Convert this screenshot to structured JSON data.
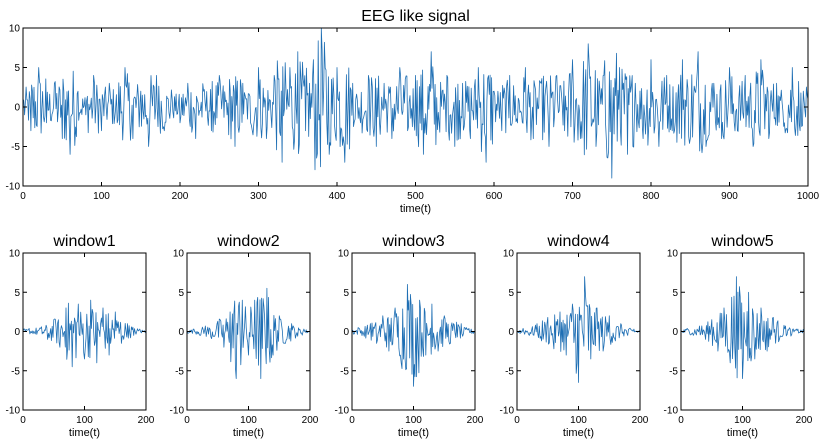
{
  "chart_data": [
    {
      "type": "line",
      "title": "EEG like signal",
      "xlabel": "time(t)",
      "ylabel": "",
      "xlim": [
        0,
        1000
      ],
      "ylim": [
        -10,
        10
      ],
      "xticks": [
        0,
        100,
        200,
        300,
        400,
        500,
        600,
        700,
        800,
        900,
        1000
      ],
      "yticks": [
        -10,
        -5,
        0,
        5,
        10
      ],
      "grid": false,
      "color": "#1f6fb4",
      "series": [
        {
          "x": [
            0,
            10,
            20,
            30,
            40,
            50,
            60,
            70,
            80,
            90,
            100,
            110,
            120,
            130,
            140,
            150,
            160,
            170,
            180,
            190,
            200,
            210,
            220,
            230,
            240,
            250,
            260,
            270,
            280,
            290,
            300,
            310,
            320,
            330,
            340,
            350,
            360,
            370,
            380,
            390,
            400,
            410,
            420,
            430,
            440,
            450,
            460,
            470,
            480,
            490,
            500,
            510,
            520,
            530,
            540,
            550,
            560,
            570,
            580,
            590,
            600,
            610,
            620,
            630,
            640,
            650,
            660,
            670,
            680,
            690,
            700,
            710,
            720,
            730,
            740,
            750,
            760,
            770,
            780,
            790,
            800,
            810,
            820,
            830,
            840,
            850,
            860,
            870,
            880,
            890,
            900,
            910,
            920,
            930,
            940,
            950,
            960,
            970,
            980,
            990,
            1000
          ],
          "y": [
            1,
            -3,
            5,
            -2,
            3,
            -4,
            -6,
            2,
            -1,
            4,
            -3,
            3,
            -2,
            5,
            -4,
            2,
            -5,
            4,
            -3,
            1,
            -2,
            3,
            -4,
            2,
            -3,
            4,
            -1,
            -5,
            3,
            -2,
            5,
            -4,
            4,
            -7,
            5,
            7,
            -3,
            6,
            10,
            -6,
            5,
            -7,
            3,
            -2,
            4,
            -5,
            3,
            -4,
            5,
            -3,
            4,
            -6,
            7,
            -2,
            4,
            -5,
            3,
            -4,
            5,
            -7,
            2,
            -3,
            4,
            -2,
            5,
            -4,
            3,
            -5,
            4,
            -3,
            6,
            -4,
            8,
            -5,
            4,
            -9,
            5,
            -6,
            3,
            -4,
            6,
            -5,
            4,
            -3,
            6,
            -4,
            7,
            -5,
            3,
            -4,
            5,
            -3,
            4,
            -5,
            6,
            -4,
            3,
            -2,
            5,
            -3,
            1
          ]
        }
      ]
    },
    {
      "type": "line",
      "title": "window1",
      "xlabel": "time(t)",
      "xlim": [
        0,
        200
      ],
      "ylim": [
        -10,
        10
      ],
      "xticks": [
        0,
        100,
        200
      ],
      "yticks": [
        -10,
        -5,
        0,
        5,
        10
      ],
      "series": [
        {
          "x": [
            0,
            10,
            20,
            30,
            40,
            50,
            60,
            70,
            80,
            90,
            100,
            110,
            120,
            130,
            140,
            150,
            160,
            170,
            180,
            190,
            200
          ],
          "y": [
            0,
            0.4,
            -0.3,
            0.6,
            -1,
            1.5,
            -2,
            3,
            -4.5,
            3.5,
            -3.5,
            4,
            -4,
            3,
            -3,
            2.5,
            -1.5,
            1,
            -0.5,
            0.3,
            0
          ]
        }
      ]
    },
    {
      "type": "line",
      "title": "window2",
      "xlabel": "time(t)",
      "xlim": [
        0,
        200
      ],
      "ylim": [
        -10,
        10
      ],
      "xticks": [
        0,
        100,
        200
      ],
      "yticks": [
        -10,
        -5,
        0,
        5,
        10
      ],
      "series": [
        {
          "x": [
            0,
            10,
            20,
            30,
            40,
            50,
            60,
            70,
            80,
            90,
            100,
            110,
            120,
            130,
            140,
            150,
            160,
            170,
            180,
            190,
            200
          ],
          "y": [
            0,
            0.3,
            -0.4,
            0.7,
            -0.9,
            1.3,
            -2,
            2.5,
            -6,
            4,
            -3,
            4,
            -6,
            5.5,
            -3,
            2,
            -1.5,
            1,
            -0.6,
            0.3,
            0
          ]
        }
      ]
    },
    {
      "type": "line",
      "title": "window3",
      "xlabel": "time(t)",
      "xlim": [
        0,
        200
      ],
      "ylim": [
        -10,
        10
      ],
      "xticks": [
        0,
        100,
        200
      ],
      "yticks": [
        -10,
        -5,
        0,
        5,
        10
      ],
      "series": [
        {
          "x": [
            0,
            10,
            20,
            30,
            40,
            50,
            60,
            70,
            80,
            90,
            100,
            110,
            120,
            130,
            140,
            150,
            160,
            170,
            180,
            190,
            200
          ],
          "y": [
            0,
            0.5,
            -0.6,
            1,
            -1.5,
            2,
            -2.5,
            3,
            -4,
            6,
            -7,
            4,
            -3,
            3.5,
            -2.5,
            2,
            -1.5,
            1.2,
            -0.6,
            0.4,
            0
          ]
        }
      ]
    },
    {
      "type": "line",
      "title": "window4",
      "xlabel": "time(t)",
      "xlim": [
        0,
        200
      ],
      "ylim": [
        -10,
        10
      ],
      "xticks": [
        0,
        100,
        200
      ],
      "yticks": [
        -10,
        -5,
        0,
        5,
        10
      ],
      "series": [
        {
          "x": [
            0,
            10,
            20,
            30,
            40,
            50,
            60,
            70,
            80,
            90,
            100,
            110,
            120,
            130,
            140,
            150,
            160,
            170,
            180,
            190,
            200
          ],
          "y": [
            0,
            0.4,
            -0.5,
            0.8,
            -1.2,
            1.8,
            -2.2,
            2.5,
            -3,
            3.5,
            -6.5,
            7,
            -3.5,
            3,
            -2.5,
            2,
            -1.2,
            0.8,
            -0.5,
            0.3,
            0
          ]
        }
      ]
    },
    {
      "type": "line",
      "title": "window5",
      "xlabel": "time(t)",
      "xlim": [
        0,
        200
      ],
      "ylim": [
        -10,
        10
      ],
      "xticks": [
        0,
        100,
        200
      ],
      "yticks": [
        -10,
        -5,
        0,
        5,
        10
      ],
      "series": [
        {
          "x": [
            0,
            10,
            20,
            30,
            40,
            50,
            60,
            70,
            80,
            90,
            100,
            110,
            120,
            130,
            140,
            150,
            160,
            170,
            180,
            190,
            200
          ],
          "y": [
            0,
            0.4,
            -0.5,
            0.7,
            -1,
            1.5,
            -2.5,
            3,
            -4,
            7,
            -6,
            5,
            -3.5,
            3,
            -2.5,
            1.8,
            -1,
            0.7,
            -0.4,
            0.3,
            0
          ]
        }
      ]
    }
  ]
}
